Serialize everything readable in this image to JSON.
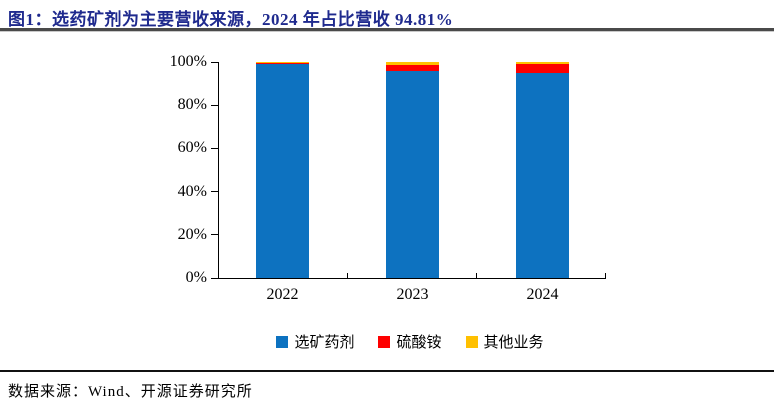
{
  "title": "图1：选药矿剂为主要营收来源，2024 年占比营收 94.81%",
  "source_note": "数据来源：Wind、开源证券研究所",
  "colors": {
    "title_text": "#1f2a8e",
    "axis": "#000000",
    "blue": "#0d72c0",
    "red": "#fe0000",
    "yellow": "#ffc000"
  },
  "chart_data": {
    "type": "bar",
    "stacked": true,
    "title": "图1：选药矿剂为主要营收来源，2024 年占比营收 94.81%",
    "categories": [
      "2022",
      "2023",
      "2024"
    ],
    "series": [
      {
        "name": "选矿药剂",
        "color": "#0d72c0",
        "values": [
          99.3,
          96.0,
          94.81
        ]
      },
      {
        "name": "硫酸铵",
        "color": "#fe0000",
        "values": [
          0.1,
          2.8,
          4.4
        ]
      },
      {
        "name": "其他业务",
        "color": "#ffc000",
        "values": [
          0.6,
          1.2,
          0.79
        ]
      }
    ],
    "xlabel": "",
    "ylabel": "",
    "ylim": [
      0,
      100
    ],
    "yticks_percent": [
      0,
      20,
      40,
      60,
      80,
      100
    ],
    "ytick_labels": [
      "0%",
      "20%",
      "40%",
      "60%",
      "80%",
      "100%"
    ],
    "grid": false,
    "legend_position": "bottom"
  }
}
